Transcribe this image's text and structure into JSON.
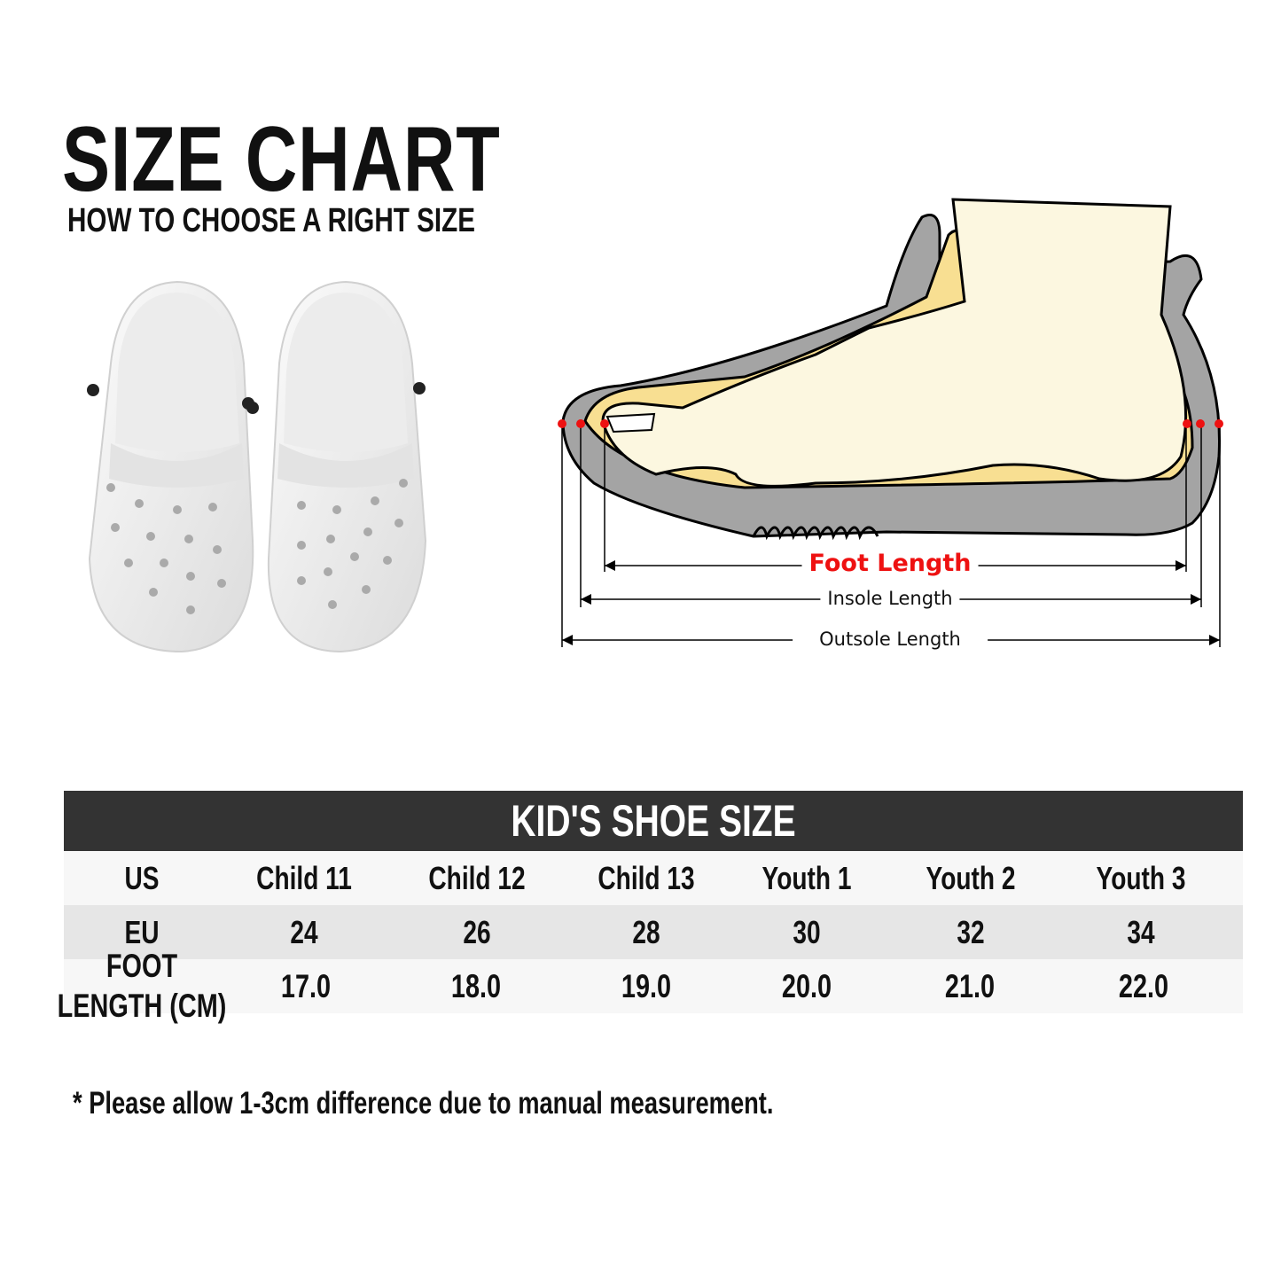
{
  "header": {
    "title": "SIZE CHART",
    "subtitle": "HOW TO CHOOSE A RIGHT SIZE"
  },
  "diagram": {
    "foot_length": "Foot Length",
    "insole_length": "Insole Length",
    "outsole_length": "Outsole Length",
    "foot_length_color": "#ee1111"
  },
  "table": {
    "title": "KID'S SHOE SIZE",
    "header_color": "#333333",
    "rows": [
      {
        "label": "US",
        "values": [
          "Child 11",
          "Child 12",
          "Child 13",
          "Youth 1",
          "Youth 2",
          "Youth 3"
        ]
      },
      {
        "label": "EU",
        "values": [
          "24",
          "26",
          "28",
          "30",
          "32",
          "34"
        ]
      },
      {
        "label_line1": "FOOT",
        "label_line2": "LENGTH (CM)",
        "values": [
          "17.0",
          "18.0",
          "19.0",
          "20.0",
          "21.0",
          "22.0"
        ]
      }
    ]
  },
  "note": "* Please allow 1-3cm difference due to manual measurement."
}
